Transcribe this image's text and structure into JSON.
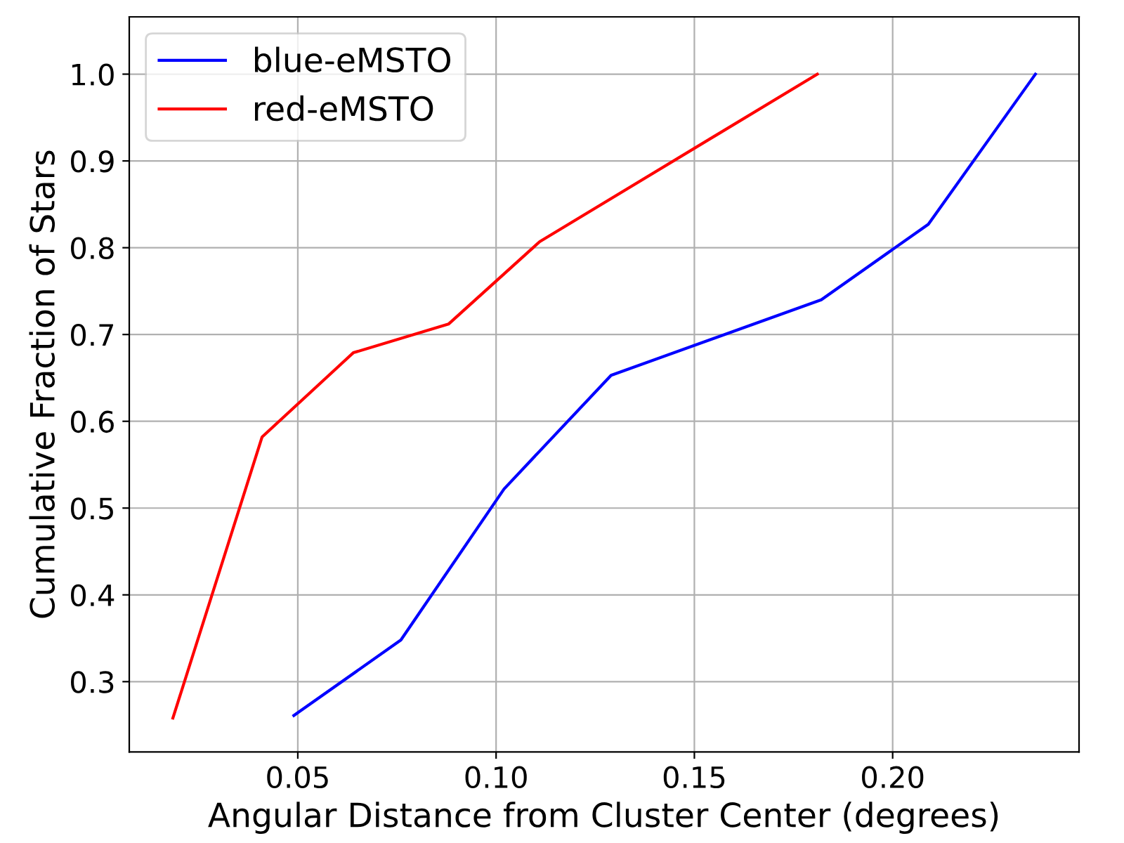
{
  "chart_data": {
    "type": "line",
    "xlabel": "Angular Distance from Cluster Center (degrees)",
    "ylabel": "Cumulative Fraction of Stars",
    "series": [
      {
        "name": "blue-eMSTO",
        "color": "#0000ff",
        "x": [
          0.049,
          0.076,
          0.102,
          0.129,
          0.182,
          0.209,
          0.236
        ],
        "values": [
          0.261,
          0.348,
          0.522,
          0.653,
          0.74,
          0.827,
          1.0
        ]
      },
      {
        "name": "red-eMSTO",
        "color": "#ff0000",
        "x": [
          0.0185,
          0.041,
          0.064,
          0.088,
          0.111,
          0.181
        ],
        "values": [
          0.258,
          0.582,
          0.679,
          0.712,
          0.807,
          1.0
        ]
      }
    ],
    "xlim": [
      0.0075,
      0.247
    ],
    "ylim": [
      0.219,
      1.066
    ],
    "xticks": [
      {
        "value": 0.05,
        "label": "0.05"
      },
      {
        "value": 0.1,
        "label": "0.10"
      },
      {
        "value": 0.15,
        "label": "0.15"
      },
      {
        "value": 0.2,
        "label": "0.20"
      }
    ],
    "yticks": [
      {
        "value": 0.3,
        "label": "0.3"
      },
      {
        "value": 0.4,
        "label": "0.4"
      },
      {
        "value": 0.5,
        "label": "0.5"
      },
      {
        "value": 0.6,
        "label": "0.6"
      },
      {
        "value": 0.7,
        "label": "0.7"
      },
      {
        "value": 0.8,
        "label": "0.8"
      },
      {
        "value": 0.9,
        "label": "0.9"
      },
      {
        "value": 1.0,
        "label": "1.0"
      }
    ],
    "grid": true,
    "legend": "top left",
    "line_style": "solid"
  }
}
